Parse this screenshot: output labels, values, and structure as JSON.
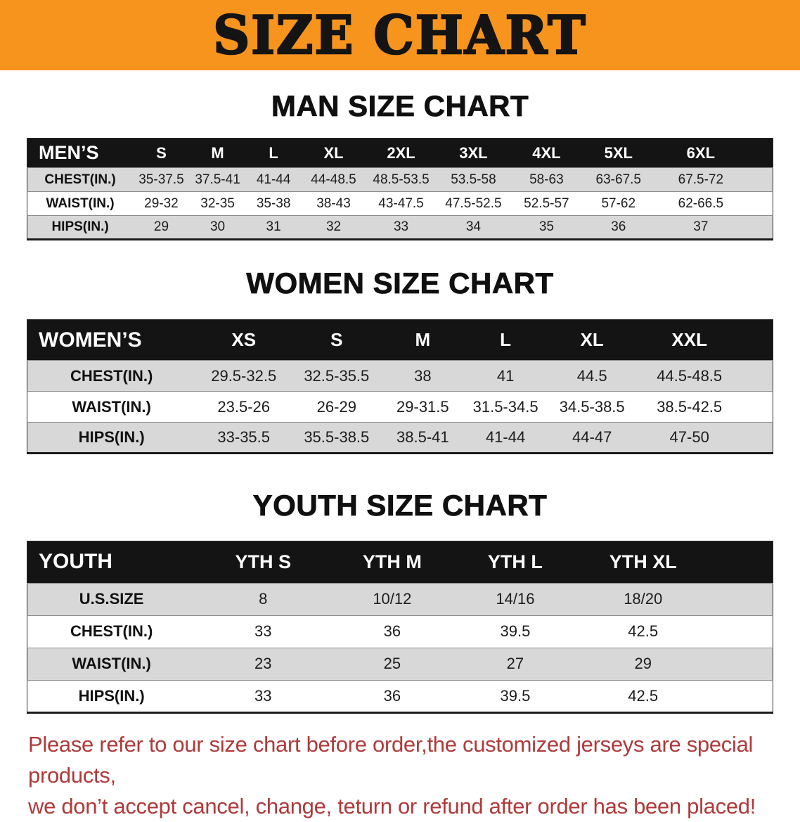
{
  "banner": {
    "title": "SIZE CHART",
    "background_color": "#f7941e",
    "text_color": "#141414"
  },
  "sections": [
    {
      "heading": "MAN SIZE CHART",
      "table": {
        "header": [
          "MEN’S",
          "S",
          "M",
          "L",
          "XL",
          "2XL",
          "3XL",
          "4XL",
          "5XL",
          "6XL"
        ],
        "rows": [
          [
            "CHEST(IN.)",
            "35-37.5",
            "37.5-41",
            "41-44",
            "44-48.5",
            "48.5-53.5",
            "53.5-58",
            "58-63",
            "63-67.5",
            "67.5-72"
          ],
          [
            "WAIST(IN.)",
            "29-32",
            "32-35",
            "35-38",
            "38-43",
            "43-47.5",
            "47.5-52.5",
            "52.5-57",
            "57-62",
            "62-66.5"
          ],
          [
            "HIPS(IN.)",
            "29",
            "30",
            "31",
            "32",
            "33",
            "34",
            "35",
            "36",
            "37"
          ]
        ]
      }
    },
    {
      "heading": "WOMEN SIZE CHART",
      "table": {
        "header": [
          "WOMEN’S",
          "XS",
          "S",
          "M",
          "L",
          "XL",
          "XXL"
        ],
        "rows": [
          [
            "CHEST(IN.)",
            "29.5-32.5",
            "32.5-35.5",
            "38",
            "41",
            "44.5",
            "44.5-48.5"
          ],
          [
            "WAIST(IN.)",
            "23.5-26",
            "26-29",
            "29-31.5",
            "31.5-34.5",
            "34.5-38.5",
            "38.5-42.5"
          ],
          [
            "HIPS(IN.)",
            "33-35.5",
            "35.5-38.5",
            "38.5-41",
            "41-44",
            "44-47",
            "47-50"
          ]
        ]
      }
    },
    {
      "heading": "YOUTH SIZE CHART",
      "table": {
        "header": [
          "YOUTH",
          "YTH S",
          "YTH M",
          "YTH L",
          "YTH XL"
        ],
        "rows": [
          [
            "U.S.SIZE",
            "8",
            "10/12",
            "14/16",
            "18/20"
          ],
          [
            "CHEST(IN.)",
            "33",
            "36",
            "39.5",
            "42.5"
          ],
          [
            "WAIST(IN.)",
            "23",
            "25",
            "27",
            "29"
          ],
          [
            "HIPS(IN.)",
            "33",
            "36",
            "39.5",
            "42.5"
          ]
        ]
      }
    }
  ],
  "disclaimer": {
    "lines": [
      "Please refer to our size chart before order,the customized jerseys are special products,",
      "we don’t accept cancel, change, teturn or refund after order has been placed!"
    ],
    "text_color": "#b03a3a"
  },
  "colors": {
    "banner_orange": "#f7941e",
    "table_header_bg": "#141414",
    "table_header_text": "#ffffff",
    "stripe_row_bg": "#d8d8d8"
  }
}
